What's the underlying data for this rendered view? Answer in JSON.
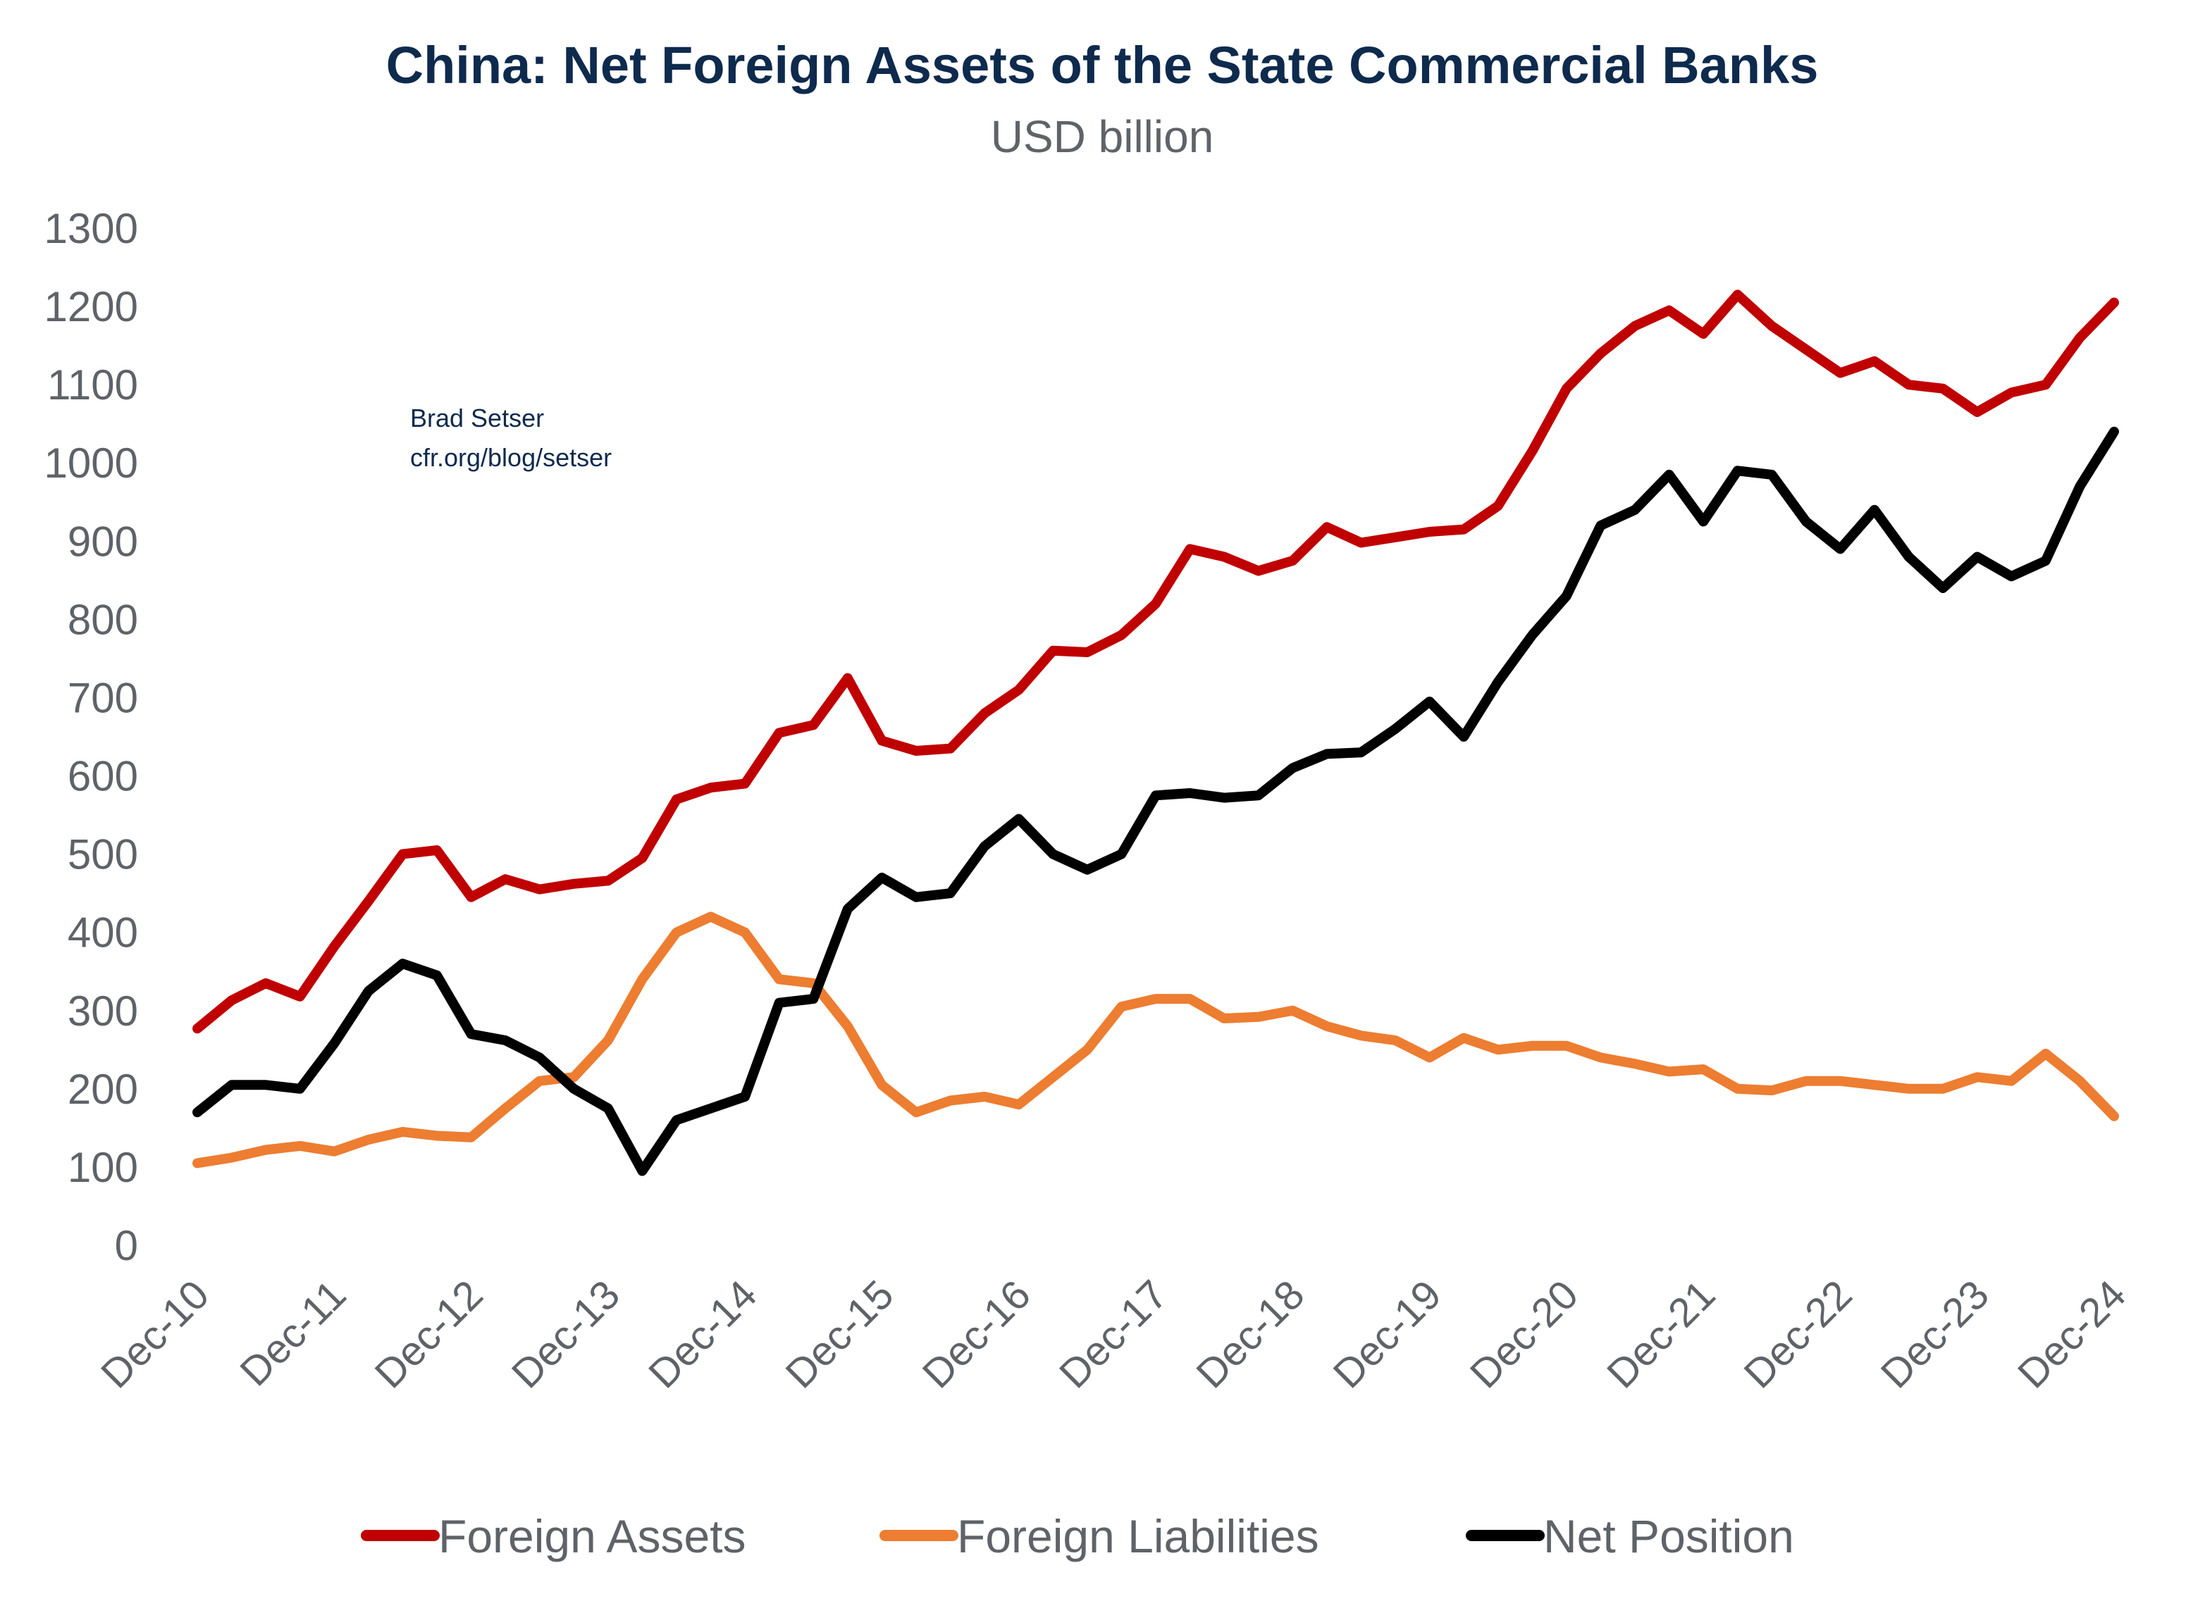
{
  "chart_data": {
    "type": "line",
    "title": "China: Net Foreign Assets of the State Commercial Banks",
    "subtitle": "USD billion",
    "annotation": [
      "Brad Setser",
      "cfr.org/blog/setser"
    ],
    "ylim": [
      0,
      1300
    ],
    "yticks": [
      0,
      100,
      200,
      300,
      400,
      500,
      600,
      700,
      800,
      900,
      1000,
      1100,
      1200,
      1300
    ],
    "xticks": [
      "Dec-10",
      "Dec-11",
      "Dec-12",
      "Dec-13",
      "Dec-14",
      "Dec-15",
      "Dec-16",
      "Dec-17",
      "Dec-18",
      "Dec-19",
      "Dec-20",
      "Dec-21",
      "Dec-22",
      "Dec-23",
      "Dec-24"
    ],
    "grid": false,
    "legend": "bottom",
    "x": [
      "2010-12",
      "2011-03",
      "2011-06",
      "2011-09",
      "2011-12",
      "2012-03",
      "2012-06",
      "2012-09",
      "2012-12",
      "2013-03",
      "2013-06",
      "2013-09",
      "2013-12",
      "2014-03",
      "2014-06",
      "2014-09",
      "2014-12",
      "2015-03",
      "2015-06",
      "2015-09",
      "2015-12",
      "2016-03",
      "2016-06",
      "2016-09",
      "2016-12",
      "2017-03",
      "2017-06",
      "2017-09",
      "2017-12",
      "2018-03",
      "2018-06",
      "2018-09",
      "2018-12",
      "2019-03",
      "2019-06",
      "2019-09",
      "2019-12",
      "2020-03",
      "2020-06",
      "2020-09",
      "2020-12",
      "2021-03",
      "2021-06",
      "2021-09",
      "2021-12",
      "2022-03",
      "2022-06",
      "2022-09",
      "2022-12",
      "2023-03",
      "2023-06",
      "2023-09",
      "2023-12",
      "2024-03",
      "2024-06",
      "2024-09",
      "2024-12"
    ],
    "series": [
      {
        "name": "Foreign Assets",
        "color": "#c00000",
        "values": [
          277,
          313,
          335,
          318,
          382,
          440,
          500,
          505,
          445,
          468,
          455,
          462,
          466,
          495,
          570,
          585,
          590,
          655,
          665,
          725,
          645,
          632,
          635,
          680,
          710,
          760,
          758,
          780,
          820,
          890,
          880,
          862,
          875,
          918,
          898,
          905,
          912,
          915,
          945,
          1015,
          1095,
          1140,
          1175,
          1195,
          1165,
          1215,
          1175,
          1145,
          1115,
          1130,
          1100,
          1095,
          1065,
          1090,
          1100,
          1160,
          1205
        ]
      },
      {
        "name": "Foreign Liabilities",
        "color": "#ed7d31",
        "values": [
          105,
          112,
          122,
          127,
          120,
          135,
          145,
          140,
          138,
          175,
          210,
          215,
          262,
          340,
          400,
          420,
          400,
          340,
          335,
          280,
          205,
          170,
          185,
          190,
          180,
          215,
          250,
          305,
          315,
          315,
          290,
          292,
          300,
          280,
          268,
          262,
          240,
          265,
          250,
          255,
          255,
          240,
          232,
          222,
          225,
          200,
          198,
          210,
          210,
          205,
          200,
          200,
          215,
          210,
          245,
          210,
          165
        ]
      },
      {
        "name": "Net Position",
        "color": "#000000",
        "values": [
          170,
          205,
          205,
          200,
          258,
          325,
          360,
          345,
          270,
          262,
          240,
          200,
          175,
          95,
          160,
          175,
          190,
          310,
          315,
          430,
          470,
          445,
          450,
          510,
          545,
          500,
          480,
          500,
          575,
          578,
          572,
          575,
          610,
          628,
          630,
          660,
          695,
          650,
          720,
          780,
          830,
          920,
          940,
          985,
          925,
          990,
          985,
          925,
          890,
          940,
          880,
          840,
          880,
          855,
          875,
          970,
          1040
        ]
      }
    ]
  }
}
